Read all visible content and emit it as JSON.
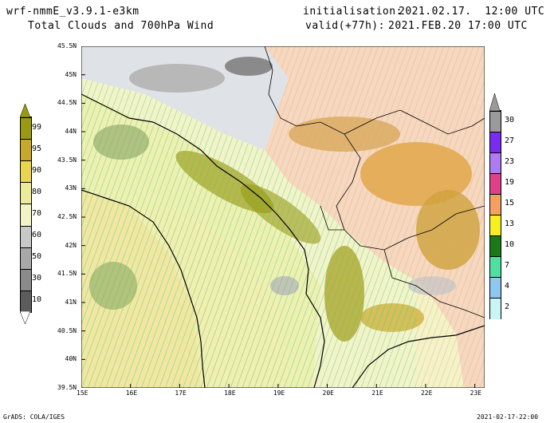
{
  "header": {
    "model": "wrf-nmmE_v3.9.1-e3km",
    "product": "Total Clouds and 700hPa Wind",
    "init_label": "initialisation:",
    "init_value": "2021.02.17.  12:00 UTC",
    "valid_label": "valid(+77h):",
    "valid_value": "2021.FEB.20 17:00 UTC"
  },
  "footer": {
    "credit": "GrADS: COLA/IGES",
    "timestamp": "2021-02-17-22:00"
  },
  "map": {
    "lat_labels": [
      "45.5N",
      "45N",
      "44.5N",
      "44N",
      "43.5N",
      "43N",
      "42.5N",
      "42N",
      "41.5N",
      "41N",
      "40.5N",
      "40N",
      "39.5N"
    ],
    "lon_labels": [
      "15E",
      "16E",
      "17E",
      "18E",
      "19E",
      "20E",
      "21E",
      "22E",
      "23E"
    ],
    "lon_range": [
      15,
      23.2
    ],
    "lat_range": [
      39.5,
      45.5
    ]
  },
  "left_colorbar": {
    "title": "Total Clouds",
    "labels": [
      "99",
      "95",
      "90",
      "80",
      "70",
      "60",
      "50",
      "30",
      "10"
    ],
    "colors": [
      "#9a9a12",
      "#c8a82a",
      "#e9d450",
      "#ecec98",
      "#f3f3c8",
      "#c8c8c8",
      "#a8a8a8",
      "#8a8a8a",
      "#5c5c5c"
    ]
  },
  "right_colorbar": {
    "title": "700hPa Wind",
    "labels": [
      "30",
      "27",
      "23",
      "19",
      "15",
      "13",
      "10",
      "7",
      "4",
      "2"
    ],
    "colors": [
      "#9a9a9a",
      "#7a2cf0",
      "#b07af0",
      "#e0408a",
      "#f4a060",
      "#f5f01e",
      "#1a7a1a",
      "#4fe0a0",
      "#8ec8f0",
      "#c8f5f5"
    ]
  },
  "colors": {
    "sea_hatch": "#3ec890",
    "land_hatch": "#f0a070",
    "coast": "#000000"
  }
}
